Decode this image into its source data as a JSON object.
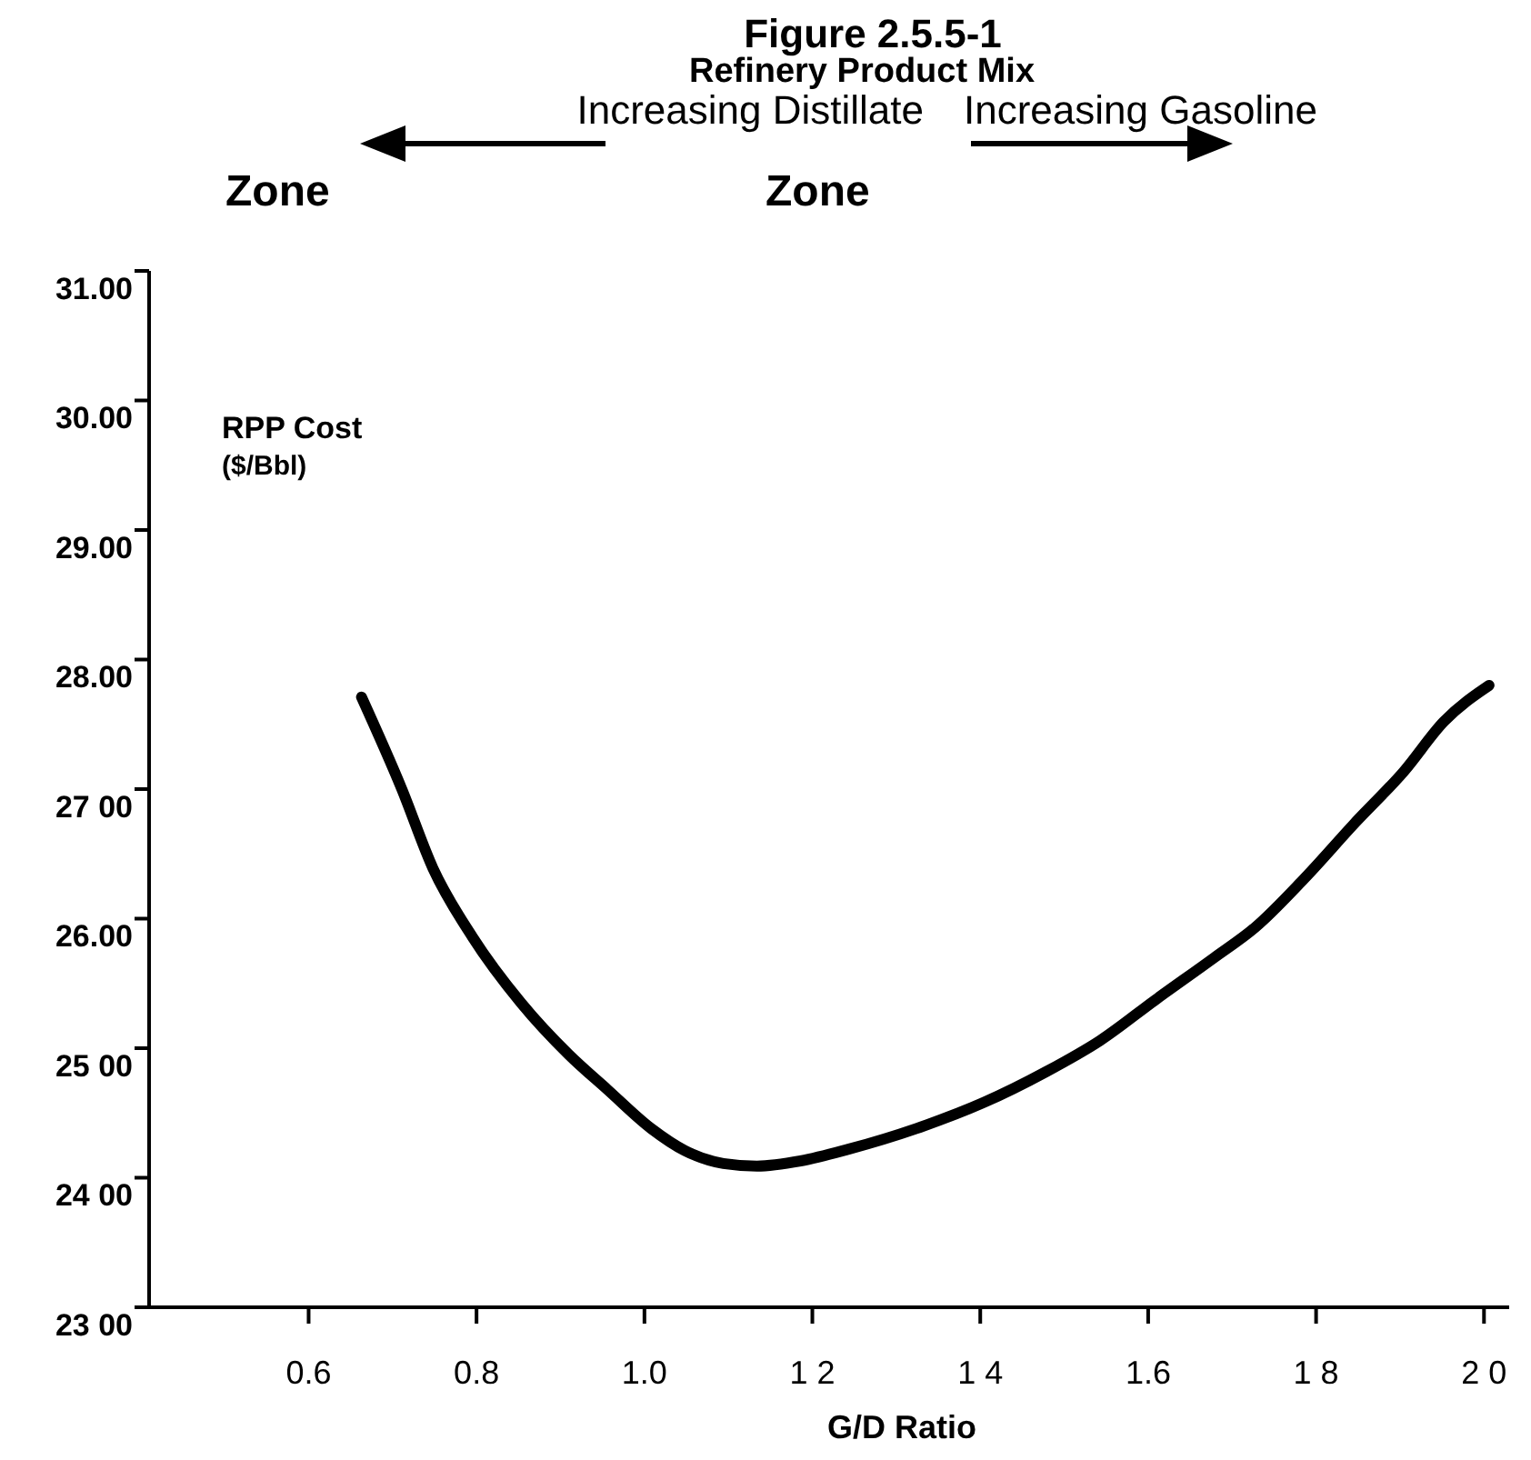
{
  "chart_data": {
    "type": "line",
    "title": "Figure 2.5.5-1",
    "subtitle": "Refinery Product Mix",
    "xlabel": "G/D Ratio",
    "ylabel": "RPP Cost ($/Bbl)",
    "annotations": [
      "Increasing Distillate",
      "Increasing Gasoline",
      "Zone",
      "Zone"
    ],
    "xlim": [
      0.41,
      2.03
    ],
    "ylim": [
      23,
      31
    ],
    "xticks": [
      {
        "value": 0.6,
        "label": "0.6"
      },
      {
        "value": 0.8,
        "label": "0.8"
      },
      {
        "value": 1.0,
        "label": "1.0"
      },
      {
        "value": 1.2,
        "label": "1 2"
      },
      {
        "value": 1.4,
        "label": "1 4"
      },
      1.6,
      {
        "value": 1.8,
        "label": "1 8"
      },
      {
        "value": 2.0,
        "label": "2 0"
      }
    ],
    "yticks": [
      {
        "value": 23,
        "label": "23 00"
      },
      {
        "value": 24,
        "label": "24 00"
      },
      {
        "value": 25,
        "label": "25 00"
      },
      {
        "value": 26,
        "label": "26.00"
      },
      {
        "value": 27,
        "label": "27 00"
      },
      {
        "value": 28,
        "label": "28.00"
      },
      {
        "value": 29,
        "label": "29.00"
      },
      {
        "value": 30,
        "label": "30.00"
      },
      {
        "value": 31,
        "label": "31.00"
      }
    ],
    "grid": false,
    "marker": "none",
    "line_style": "solid",
    "series": [
      {
        "color": "#000000",
        "x": [
          0.663,
          0.711,
          0.748,
          0.795,
          0.853,
          0.91,
          0.956,
          1.008,
          1.048,
          1.094,
          1.134,
          1.186,
          1.243,
          1.324,
          1.404,
          1.479,
          1.543,
          1.608,
          1.679,
          1.727,
          1.786,
          1.845,
          1.905,
          1.952,
          2.006
        ],
        "values": [
          27.71,
          27.0,
          26.39,
          25.86,
          25.35,
          24.95,
          24.68,
          24.38,
          24.21,
          24.11,
          24.09,
          24.13,
          24.22,
          24.38,
          24.58,
          24.82,
          25.06,
          25.37,
          25.7,
          25.93,
          26.31,
          26.73,
          27.14,
          27.52,
          27.8
        ]
      }
    ]
  }
}
